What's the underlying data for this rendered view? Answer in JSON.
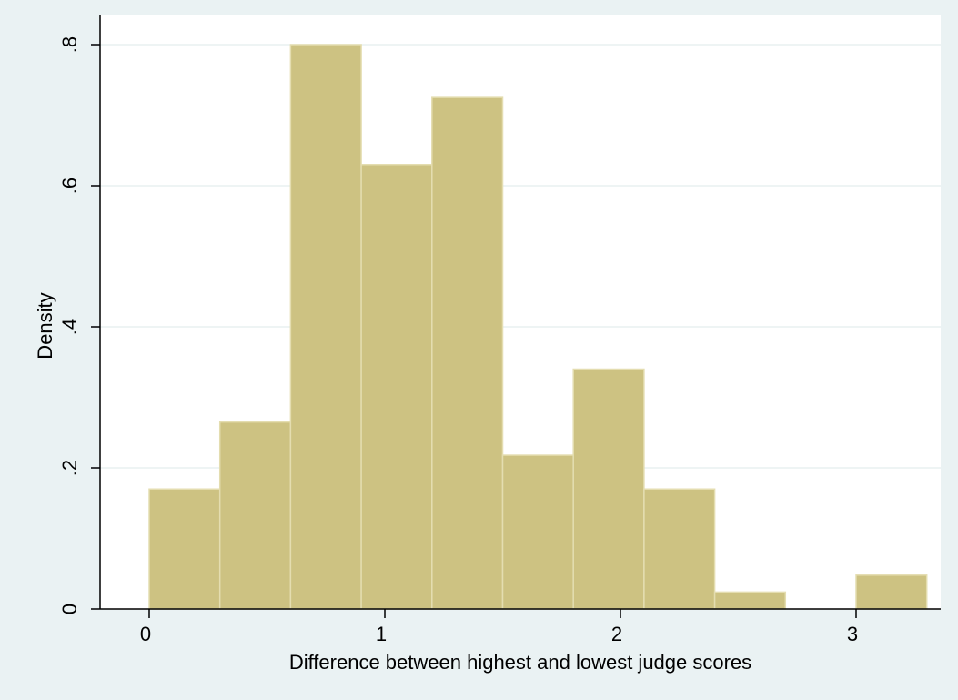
{
  "chart_data": {
    "type": "bar",
    "title": "",
    "xlabel": "Difference between highest and lowest judge scores",
    "ylabel": "Density",
    "xlim": [
      -0.15,
      3.3
    ],
    "ylim": [
      0,
      0.8
    ],
    "x_ticks": [
      {
        "value": 0,
        "label": "0"
      },
      {
        "value": 1,
        "label": "1"
      },
      {
        "value": 2,
        "label": "2"
      },
      {
        "value": 3,
        "label": "3"
      }
    ],
    "y_ticks": [
      {
        "value": 0,
        "label": "0"
      },
      {
        "value": 0.2,
        "label": ".2"
      },
      {
        "value": 0.4,
        "label": ".4"
      },
      {
        "value": 0.6,
        "label": ".6"
      },
      {
        "value": 0.8,
        "label": ".8"
      }
    ],
    "grid": true,
    "legend": "none",
    "bins": [
      {
        "start": 0.0,
        "end": 0.3,
        "density": 0.17
      },
      {
        "start": 0.3,
        "end": 0.6,
        "density": 0.265
      },
      {
        "start": 0.6,
        "end": 0.9,
        "density": 0.8
      },
      {
        "start": 0.9,
        "end": 1.2,
        "density": 0.63
      },
      {
        "start": 1.2,
        "end": 1.5,
        "density": 0.725
      },
      {
        "start": 1.5,
        "end": 1.8,
        "density": 0.218
      },
      {
        "start": 1.8,
        "end": 2.1,
        "density": 0.34
      },
      {
        "start": 2.1,
        "end": 2.4,
        "density": 0.17
      },
      {
        "start": 2.4,
        "end": 2.7,
        "density": 0.024
      },
      {
        "start": 2.7,
        "end": 3.0,
        "density": 0
      },
      {
        "start": 3.0,
        "end": 3.3,
        "density": 0.048
      }
    ],
    "colors": {
      "page_background": "#eaf2f3",
      "plot_background": "#ffffff",
      "bar_fill": "#cdc282",
      "bar_stroke": "#e4ddb0",
      "grid": "#e8f0f1",
      "axis": "#000000"
    }
  }
}
